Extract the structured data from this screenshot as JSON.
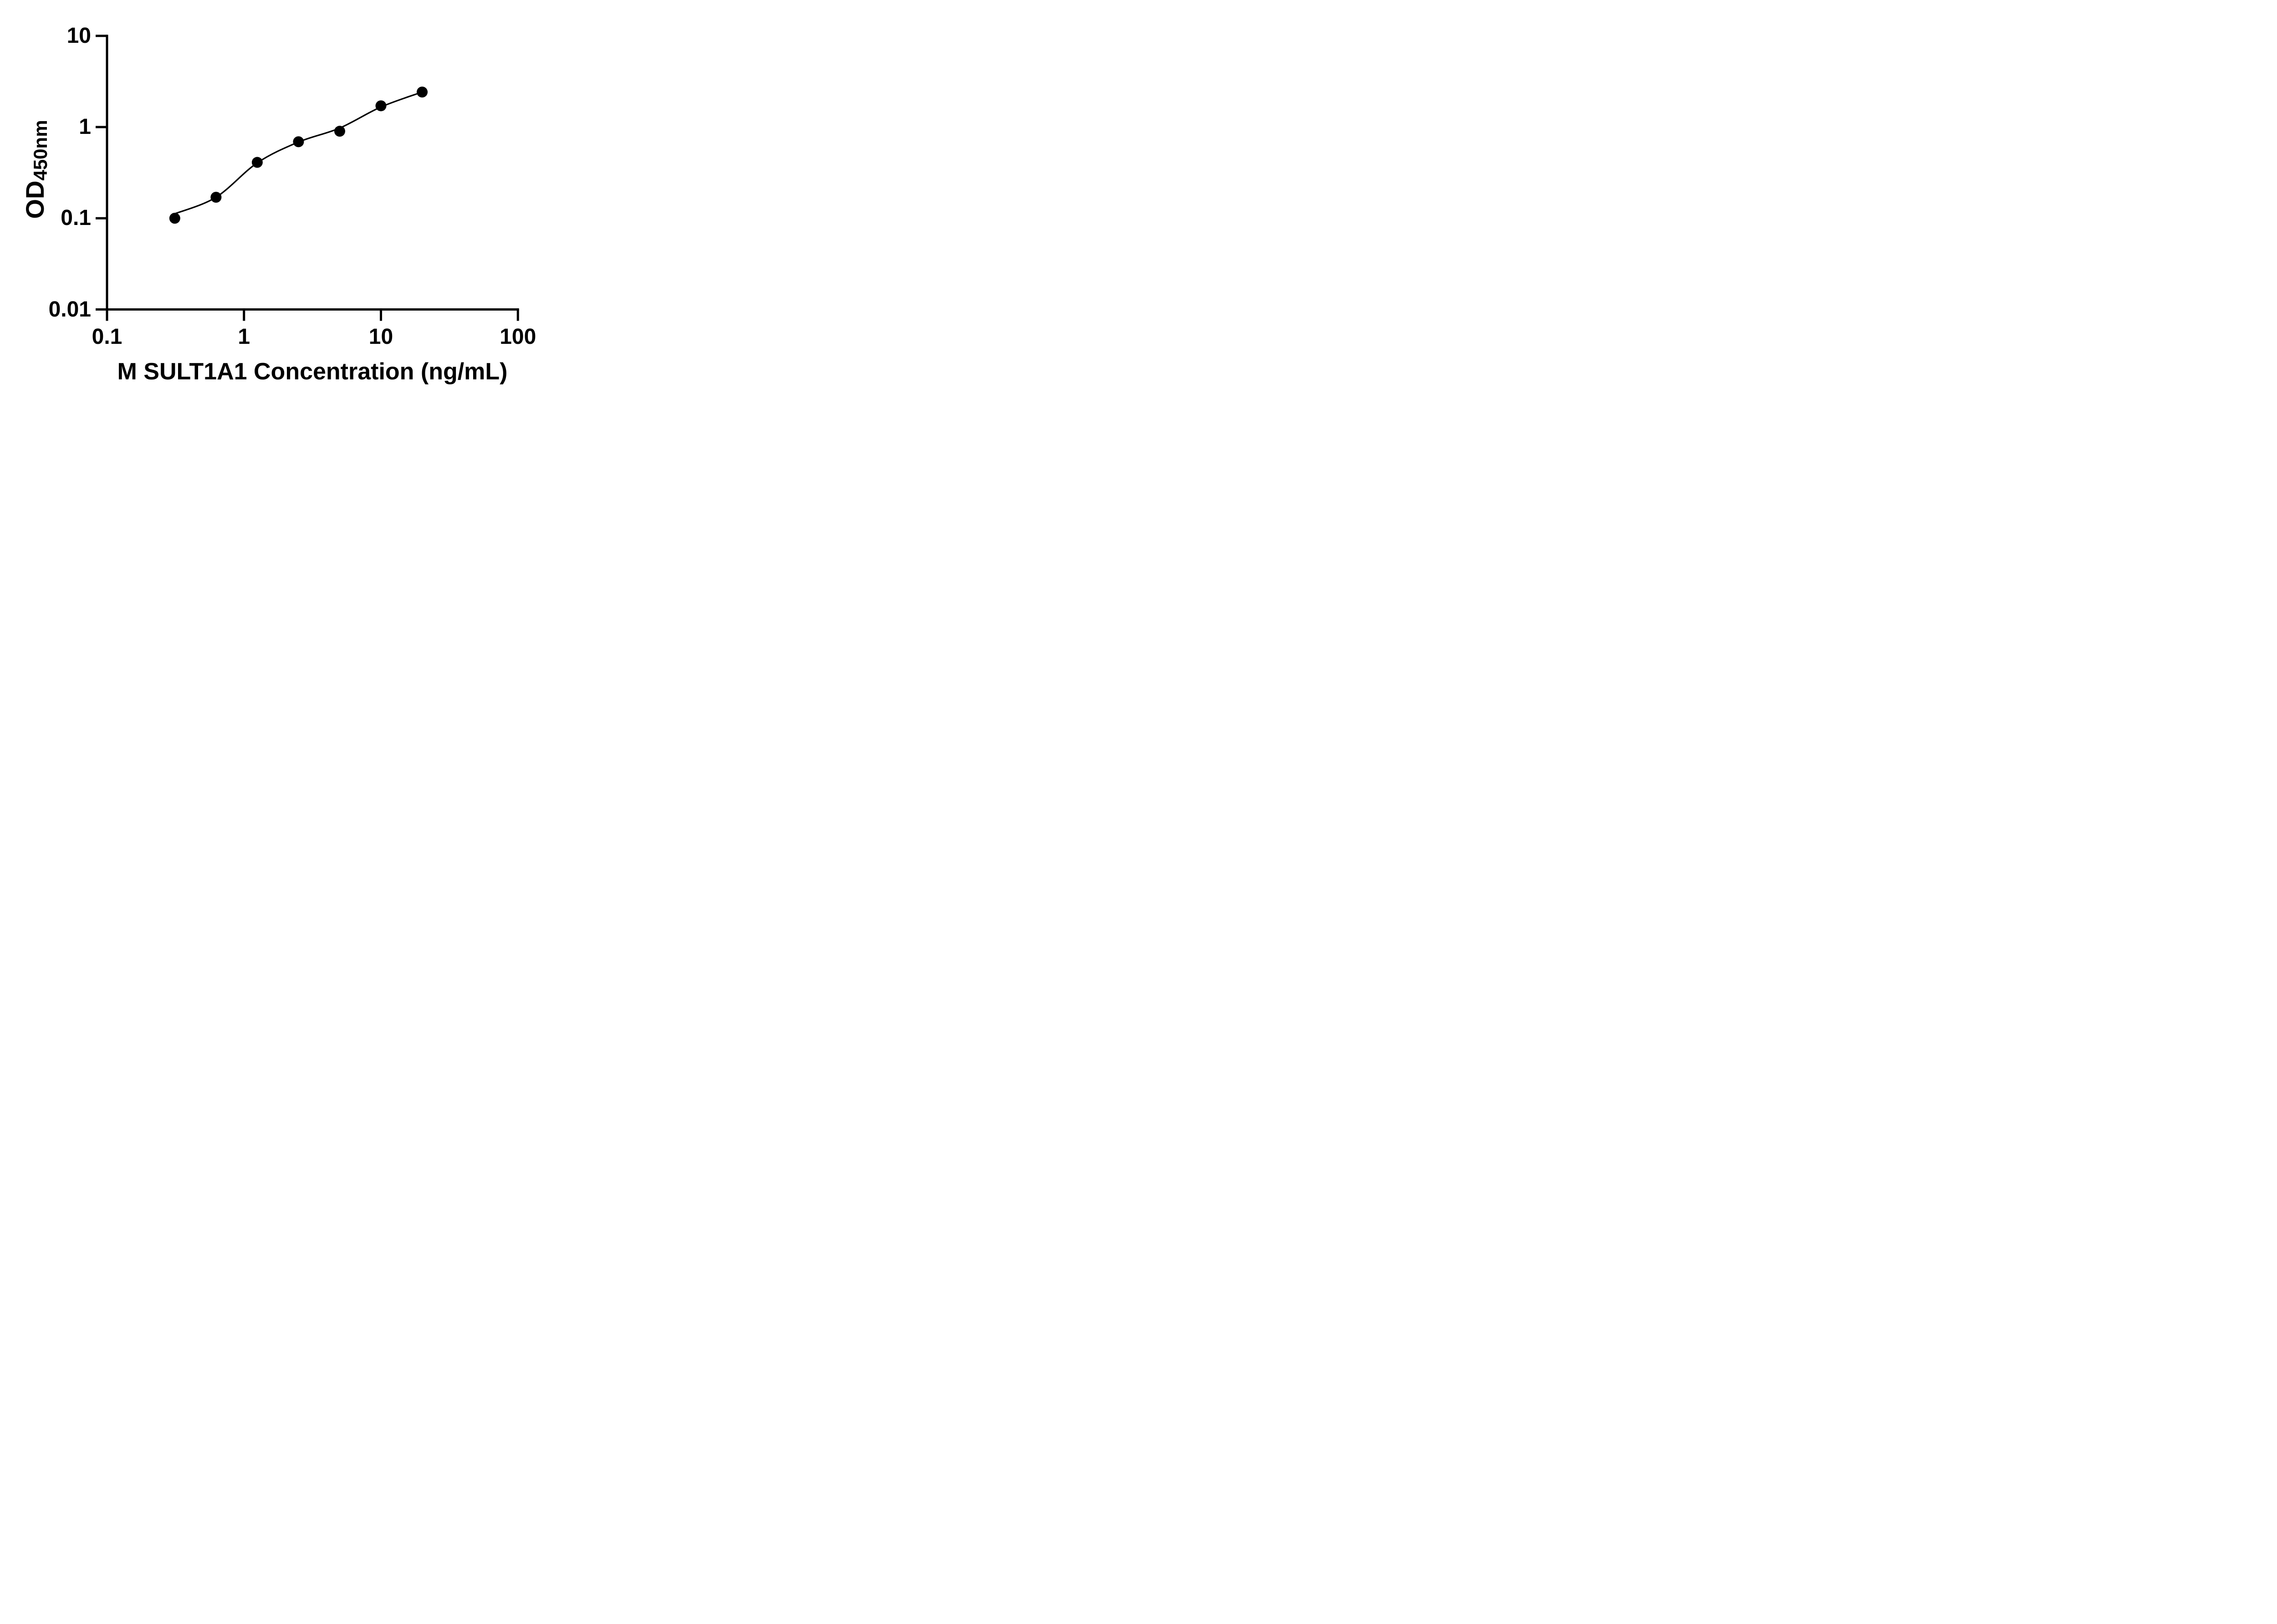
{
  "figure": {
    "background": "#ffffff",
    "ink_color": "#000000"
  },
  "chart_data": {
    "type": "scatter",
    "subtype": "standard-curve-with-fit",
    "title": "",
    "xlabel": "M SULT1A1 Concentration (ng/mL)",
    "ylabel_main": "OD",
    "ylabel_sub": "450nm",
    "x_scale": "log10",
    "y_scale": "log10",
    "xlim": [
      0.1,
      100
    ],
    "ylim": [
      0.01,
      10
    ],
    "grid": false,
    "legend": null,
    "x_ticks": [
      0.1,
      1,
      10,
      100
    ],
    "x_tick_labels": [
      "0.1",
      "1",
      "10",
      "100"
    ],
    "y_ticks": [
      10,
      1,
      0.1,
      0.01
    ],
    "y_tick_labels": [
      "10",
      "1",
      "0.1",
      "0.01"
    ],
    "series": [
      {
        "name": "standard-points",
        "kind": "points",
        "marker": "filled-circle",
        "color": "#000000",
        "x": [
          0.3125,
          0.625,
          1.25,
          2.5,
          5,
          10,
          20
        ],
        "y": [
          0.1,
          0.17,
          0.41,
          0.69,
          0.9,
          1.71,
          2.42
        ]
      },
      {
        "name": "fit-curve",
        "kind": "curve",
        "color": "#000000",
        "x": [
          0.3125,
          0.625,
          1.25,
          2.5,
          5,
          10,
          20
        ],
        "y": [
          0.112,
          0.17,
          0.405,
          0.685,
          0.975,
          1.66,
          2.42
        ]
      }
    ]
  }
}
